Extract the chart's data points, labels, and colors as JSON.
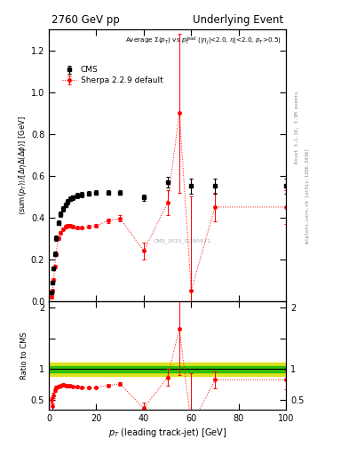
{
  "title_left": "2760 GeV pp",
  "title_right": "Underlying Event",
  "plot_title": "Average $\\Sigma(p_T)$ vs $p_T^{lead}$ ($|\\eta_j|$<2.0, $\\eta|$<2.0, $p_T$>0.5)",
  "ylabel_main": "$\\langle$sum$(p_T)\\rangle/[\\Delta\\eta\\Delta(\\Delta\\phi)]$ [GeV]",
  "ylabel_ratio": "Ratio to CMS",
  "xlabel": "$p_T$ (leading track-jet) [GeV]",
  "right_label1": "Rivet 3.1.10, 3.3M events",
  "right_label2": "mcplots.cern.ch [arXiv:1306.3436]",
  "watermark": "CMS_2015_I1395971",
  "cms_x": [
    1.0,
    1.5,
    2.0,
    2.5,
    3.0,
    4.0,
    5.0,
    6.0,
    7.0,
    8.0,
    9.0,
    10.0,
    12.0,
    14.0,
    17.0,
    20.0,
    25.0,
    30.0,
    40.0,
    50.0,
    60.0,
    70.0,
    100.0
  ],
  "cms_y": [
    0.04,
    0.09,
    0.155,
    0.225,
    0.3,
    0.375,
    0.415,
    0.44,
    0.46,
    0.475,
    0.49,
    0.495,
    0.505,
    0.51,
    0.515,
    0.52,
    0.52,
    0.52,
    0.495,
    0.57,
    0.55,
    0.55,
    0.55
  ],
  "cms_yerr": [
    0.005,
    0.007,
    0.009,
    0.011,
    0.012,
    0.012,
    0.012,
    0.012,
    0.012,
    0.012,
    0.012,
    0.012,
    0.012,
    0.012,
    0.012,
    0.012,
    0.012,
    0.012,
    0.015,
    0.025,
    0.035,
    0.035,
    0.035
  ],
  "sherpa_x": [
    1.0,
    1.5,
    2.0,
    2.5,
    3.0,
    4.0,
    5.0,
    6.0,
    7.0,
    8.0,
    9.0,
    10.0,
    12.0,
    14.0,
    17.0,
    20.0,
    25.0,
    30.0,
    40.0,
    50.0,
    55.0,
    60.0,
    70.0,
    100.0
  ],
  "sherpa_y": [
    0.02,
    0.05,
    0.1,
    0.165,
    0.225,
    0.3,
    0.325,
    0.345,
    0.355,
    0.36,
    0.36,
    0.355,
    0.35,
    0.35,
    0.355,
    0.36,
    0.385,
    0.395,
    0.24,
    0.47,
    0.9,
    0.05,
    0.45,
    0.45
  ],
  "sherpa_yerr": [
    0.008,
    0.008,
    0.008,
    0.008,
    0.008,
    0.008,
    0.008,
    0.008,
    0.008,
    0.008,
    0.008,
    0.008,
    0.008,
    0.008,
    0.008,
    0.008,
    0.01,
    0.015,
    0.04,
    0.06,
    0.38,
    0.45,
    0.07,
    0.08
  ],
  "ratio_x": [
    1.0,
    1.5,
    2.0,
    2.5,
    3.0,
    4.0,
    5.0,
    6.0,
    7.0,
    8.0,
    9.0,
    10.0,
    12.0,
    14.0,
    17.0,
    20.0,
    25.0,
    30.0,
    40.0,
    50.0,
    55.0,
    60.0,
    70.0,
    100.0
  ],
  "ratio_y": [
    0.5,
    0.4,
    0.58,
    0.66,
    0.7,
    0.725,
    0.73,
    0.75,
    0.74,
    0.73,
    0.73,
    0.72,
    0.715,
    0.705,
    0.7,
    0.705,
    0.74,
    0.76,
    0.37,
    0.87,
    1.65,
    0.09,
    0.83,
    0.83
  ],
  "ratio_yerr": [
    0.05,
    0.05,
    0.04,
    0.03,
    0.03,
    0.02,
    0.02,
    0.02,
    0.02,
    0.02,
    0.02,
    0.02,
    0.02,
    0.02,
    0.02,
    0.02,
    0.02,
    0.025,
    0.09,
    0.13,
    0.75,
    0.85,
    0.14,
    0.15
  ],
  "band_green_lower": 0.945,
  "band_green_upper": 1.055,
  "band_yellow_lower": 0.89,
  "band_yellow_upper": 1.11,
  "ylim_main": [
    0.0,
    1.3
  ],
  "ylim_ratio": [
    0.35,
    2.1
  ],
  "xlim": [
    0,
    100
  ],
  "cms_color": "black",
  "sherpa_color": "red",
  "cms_marker": "s",
  "sherpa_marker": "o",
  "band_green_color": "#00bb00",
  "band_yellow_color": "#dddd00"
}
